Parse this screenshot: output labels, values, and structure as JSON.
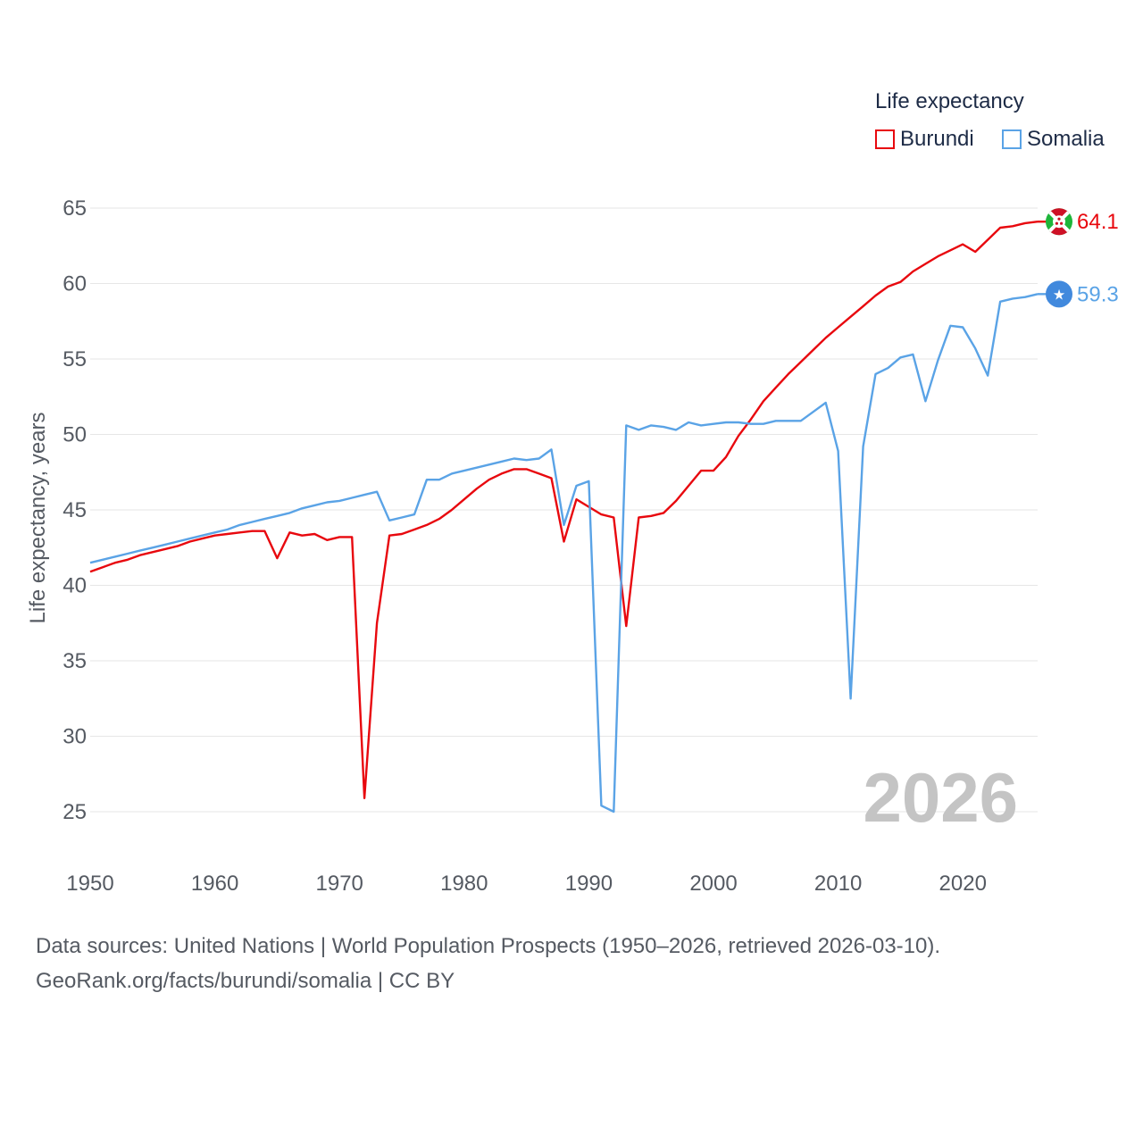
{
  "chart_data": {
    "type": "line",
    "legend_title": "Life expectancy",
    "ylabel": "Life expectancy, years",
    "xlabel": "",
    "x_ticks": [
      1950,
      1960,
      1970,
      1980,
      1990,
      2000,
      2010,
      2020
    ],
    "y_ticks": [
      25,
      30,
      35,
      40,
      45,
      50,
      55,
      60,
      65
    ],
    "xlim": [
      1950,
      2026
    ],
    "ylim": [
      25,
      65
    ],
    "watermark_year": "2026",
    "legend_position": "top-right",
    "series": [
      {
        "name": "Burundi",
        "color": "#e8080e",
        "end_label": "64.1",
        "flag": "burundi-flag",
        "x": [
          1950,
          1951,
          1952,
          1953,
          1954,
          1955,
          1956,
          1957,
          1958,
          1959,
          1960,
          1961,
          1962,
          1963,
          1964,
          1965,
          1966,
          1967,
          1968,
          1969,
          1970,
          1971,
          1972,
          1973,
          1974,
          1975,
          1976,
          1977,
          1978,
          1979,
          1980,
          1981,
          1982,
          1983,
          1984,
          1985,
          1986,
          1987,
          1988,
          1989,
          1990,
          1991,
          1992,
          1993,
          1994,
          1995,
          1996,
          1997,
          1998,
          1999,
          2000,
          2001,
          2002,
          2003,
          2004,
          2005,
          2006,
          2007,
          2008,
          2009,
          2010,
          2011,
          2012,
          2013,
          2014,
          2015,
          2016,
          2017,
          2018,
          2019,
          2020,
          2021,
          2022,
          2023,
          2024,
          2025,
          2026
        ],
        "values": [
          40.9,
          41.2,
          41.5,
          41.7,
          42.0,
          42.2,
          42.4,
          42.6,
          42.9,
          43.1,
          43.3,
          43.4,
          43.5,
          43.6,
          43.6,
          41.8,
          43.5,
          43.3,
          43.4,
          43.0,
          43.2,
          43.2,
          25.9,
          37.5,
          43.3,
          43.4,
          43.7,
          44.0,
          44.4,
          45.0,
          45.7,
          46.4,
          47.0,
          47.4,
          47.7,
          47.7,
          47.4,
          47.1,
          42.9,
          45.7,
          45.2,
          44.7,
          44.5,
          37.3,
          44.5,
          44.6,
          44.8,
          45.6,
          46.6,
          47.6,
          47.6,
          48.5,
          49.9,
          51.0,
          52.2,
          53.1,
          54.0,
          54.8,
          55.6,
          56.4,
          57.1,
          57.8,
          58.5,
          59.2,
          59.8,
          60.1,
          60.8,
          61.3,
          61.8,
          62.2,
          62.6,
          62.1,
          62.9,
          63.7,
          63.8,
          64.0,
          64.1
        ]
      },
      {
        "name": "Somalia",
        "color": "#5aa3e6",
        "end_label": "59.3",
        "flag": "somalia-flag",
        "x": [
          1950,
          1951,
          1952,
          1953,
          1954,
          1955,
          1956,
          1957,
          1958,
          1959,
          1960,
          1961,
          1962,
          1963,
          1964,
          1965,
          1966,
          1967,
          1968,
          1969,
          1970,
          1971,
          1972,
          1973,
          1974,
          1975,
          1976,
          1977,
          1978,
          1979,
          1980,
          1981,
          1982,
          1983,
          1984,
          1985,
          1986,
          1987,
          1988,
          1989,
          1990,
          1991,
          1992,
          1993,
          1994,
          1995,
          1996,
          1997,
          1998,
          1999,
          2000,
          2001,
          2002,
          2003,
          2004,
          2005,
          2006,
          2007,
          2008,
          2009,
          2010,
          2011,
          2012,
          2013,
          2014,
          2015,
          2016,
          2017,
          2018,
          2019,
          2020,
          2021,
          2022,
          2023,
          2024,
          2025,
          2026
        ],
        "values": [
          41.5,
          41.7,
          41.9,
          42.1,
          42.3,
          42.5,
          42.7,
          42.9,
          43.1,
          43.3,
          43.5,
          43.7,
          44.0,
          44.2,
          44.4,
          44.6,
          44.8,
          45.1,
          45.3,
          45.5,
          45.6,
          45.8,
          46.0,
          46.2,
          44.3,
          44.5,
          44.7,
          47.0,
          47.0,
          47.4,
          47.6,
          47.8,
          48.0,
          48.2,
          48.4,
          48.3,
          48.4,
          49.0,
          44.0,
          46.6,
          46.9,
          25.4,
          25.0,
          50.6,
          50.3,
          50.6,
          50.5,
          50.3,
          50.8,
          50.6,
          50.7,
          50.8,
          50.8,
          50.7,
          50.7,
          50.9,
          50.9,
          50.9,
          51.5,
          52.1,
          48.9,
          32.5,
          49.2,
          54.0,
          54.4,
          55.1,
          55.3,
          52.2,
          54.9,
          57.2,
          57.1,
          55.7,
          53.9,
          58.8,
          59.0,
          59.1,
          59.3
        ]
      }
    ]
  },
  "footer": {
    "sources": "Data sources: United Nations | World Population Prospects (1950–2026, retrieved 2026-03-10).",
    "credit": "GeoRank.org/facts/burundi/somalia | CC BY"
  }
}
